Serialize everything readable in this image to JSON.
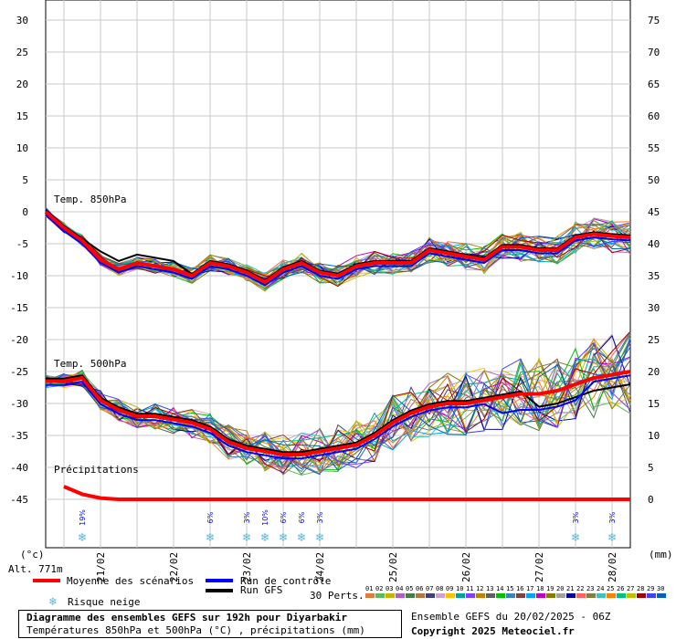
{
  "chart_data": {
    "type": "line",
    "left_axis": {
      "unit": "(°c)",
      "ticks": [
        30,
        25,
        20,
        15,
        10,
        5,
        0,
        -5,
        -10,
        -15,
        -20,
        -25,
        -30,
        -35,
        -40,
        -45
      ],
      "ylim": [
        -45,
        30
      ]
    },
    "right_axis": {
      "unit": "(mm)",
      "ticks": [
        75,
        70,
        65,
        60,
        55,
        50,
        45,
        40,
        35,
        30,
        25,
        20,
        15,
        10,
        5,
        0
      ],
      "ylim": [
        0,
        75
      ]
    },
    "x_axis": {
      "range_hours": [
        0,
        192
      ],
      "tick_labels": [
        {
          "label": "21/02",
          "h": 18
        },
        {
          "label": "22/02",
          "h": 42
        },
        {
          "label": "23/02",
          "h": 66
        },
        {
          "label": "24/02",
          "h": 90
        },
        {
          "label": "25/02",
          "h": 114
        },
        {
          "label": "26/02",
          "h": 138
        },
        {
          "label": "27/02",
          "h": 162
        },
        {
          "label": "28/02",
          "h": 186
        }
      ]
    },
    "grid": true,
    "altitude": "Alt. 771m",
    "panels": [
      {
        "label": "Temp. 850hPa"
      },
      {
        "label": "Temp. 500hPa"
      },
      {
        "label": "Précipitations"
      }
    ],
    "series": [
      {
        "name": "Moyenne des scénarios",
        "color": "#ff0000",
        "t850": {
          "x": [
            0,
            6,
            12,
            18,
            24,
            30,
            36,
            42,
            48,
            54,
            60,
            66,
            72,
            78,
            84,
            90,
            96,
            102,
            108,
            114,
            120,
            126,
            132,
            138,
            144,
            150,
            156,
            162,
            168,
            174,
            180,
            186,
            192
          ],
          "y": [
            0,
            -2.5,
            -4.5,
            -7.5,
            -9,
            -8,
            -8.5,
            -9,
            -10,
            -8,
            -8.5,
            -9.5,
            -11,
            -9,
            -8,
            -9.5,
            -10,
            -8.5,
            -8,
            -8,
            -8,
            -6,
            -6.5,
            -7,
            -7.5,
            -5.5,
            -5.5,
            -6,
            -6,
            -4,
            -3.5,
            -3.8,
            -4
          ]
        },
        "t500": {
          "x": [
            0,
            6,
            12,
            18,
            24,
            30,
            36,
            42,
            48,
            54,
            60,
            66,
            72,
            78,
            84,
            90,
            96,
            102,
            108,
            114,
            120,
            126,
            132,
            138,
            144,
            150,
            156,
            162,
            168,
            174,
            180,
            186,
            192
          ],
          "y": [
            -26.5,
            -26.5,
            -26,
            -29.5,
            -31,
            -32,
            -32,
            -32.5,
            -33,
            -34,
            -36,
            -37,
            -37.5,
            -38,
            -38,
            -37.5,
            -37,
            -36.5,
            -35,
            -33,
            -31.5,
            -30.5,
            -30,
            -30,
            -29.5,
            -29,
            -28.5,
            -28.5,
            -28,
            -27,
            -26,
            -25.5,
            -25
          ]
        },
        "precip": {
          "x": [
            6,
            12,
            18,
            24,
            192
          ],
          "y": [
            2,
            0.8,
            0.2,
            0,
            0
          ]
        }
      },
      {
        "name": "Run de contrôle",
        "color": "#0000ff"
      },
      {
        "name": "Run GFS",
        "color": "#000000"
      }
    ],
    "snow_markers": [
      {
        "h": 12,
        "label": "19%"
      },
      {
        "h": 54,
        "label": "6%"
      },
      {
        "h": 66,
        "label": "3%"
      },
      {
        "h": 72,
        "label": "10%"
      },
      {
        "h": 78,
        "label": "6%"
      },
      {
        "h": 84,
        "label": "6%"
      },
      {
        "h": 90,
        "label": "3%"
      },
      {
        "h": 174,
        "label": "3%"
      },
      {
        "h": 186,
        "label": "3%"
      }
    ]
  },
  "legend": {
    "mean_label": "Moyenne des scénarios",
    "control_label": "Run de contrôle",
    "gfs_label": "Run GFS",
    "snow_label": "Risque neige",
    "perts_label": "30 Perts.",
    "pert_numbers": [
      "01",
      "02",
      "03",
      "04",
      "05",
      "06",
      "07",
      "08",
      "09",
      "10",
      "11",
      "12",
      "13",
      "14",
      "15",
      "16",
      "17",
      "18",
      "19",
      "20",
      "21",
      "22",
      "23",
      "24",
      "25",
      "26",
      "27",
      "28",
      "29",
      "30"
    ],
    "pert_colors": [
      "#e07b39",
      "#5fb760",
      "#c8b400",
      "#b060c0",
      "#408040",
      "#b07840",
      "#404080",
      "#d0a0d0",
      "#ffc000",
      "#00a0a0",
      "#8040ff",
      "#c08000",
      "#606060",
      "#00c000",
      "#4080c0",
      "#804040",
      "#00a0ff",
      "#c000c0",
      "#808000",
      "#a0a0a0",
      "#0000a0",
      "#ff6060",
      "#808040",
      "#40c0c0",
      "#ff8000",
      "#00c080",
      "#c0c000",
      "#a00000",
      "#4040ff",
      "#0060c0"
    ]
  },
  "footer": {
    "title": "Diagramme des ensembles GEFS sur 192h pour Diyarbakir",
    "subtitle": "Températures 850hPa et 500hPa (°C) , précipitations (mm)",
    "run": "Ensemble GEFS du 20/02/2025 - 06Z",
    "copyright": "Copyright 2025 Meteociel.fr"
  }
}
